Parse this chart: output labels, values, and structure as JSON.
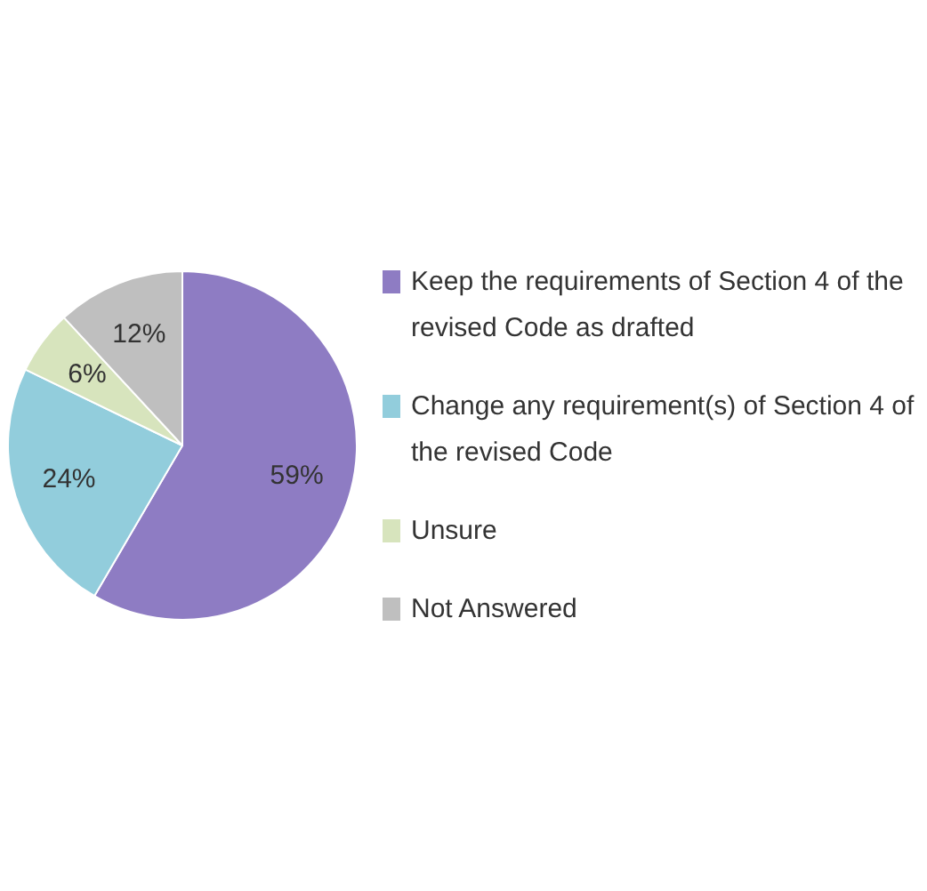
{
  "chart_data": {
    "type": "pie",
    "categories": [
      "Keep the requirements of Section 4 of the revised Code as drafted",
      "Change any requirement(s) of Section 4 of the revised Code",
      "Unsure",
      "Not Answered"
    ],
    "values": [
      59,
      24,
      6,
      12
    ],
    "value_labels": [
      "59%",
      "24%",
      "6%",
      "12%"
    ],
    "colors": [
      "#8e7cc3",
      "#92cddc",
      "#d7e4bd",
      "#bfbfbf"
    ],
    "legend": "right"
  }
}
